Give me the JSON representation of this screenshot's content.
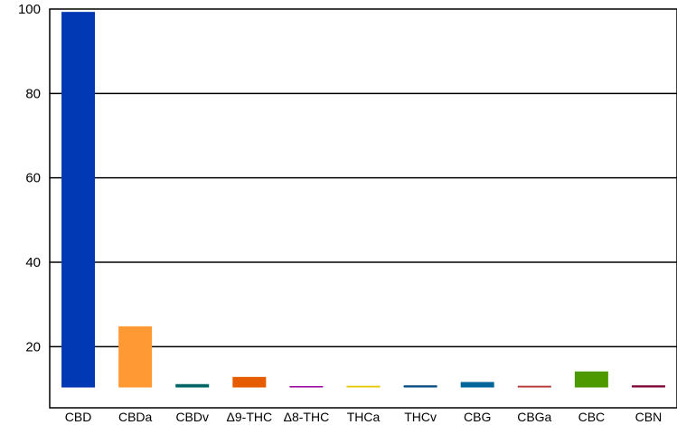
{
  "chart_data": {
    "type": "bar",
    "categories": [
      "CBD",
      "CBDa",
      "CBDv",
      "Δ9-THC",
      "Δ8-THC",
      "THCa",
      "THCv",
      "CBG",
      "CBGa",
      "CBC",
      "CBN"
    ],
    "values": [
      89,
      14.5,
      0.8,
      2.5,
      0.2,
      0.4,
      0.5,
      1.3,
      0.4,
      3.8,
      0.5
    ],
    "colors": [
      "#0039b3",
      "#ff9933",
      "#006666",
      "#e65c00",
      "#990099",
      "#e6c800",
      "#004c80",
      "#006699",
      "#b33333",
      "#4c9900",
      "#800033"
    ],
    "y_ticks": [
      20,
      40,
      60,
      80,
      100
    ],
    "ylim": [
      5.5,
      100
    ],
    "grid": true,
    "legend": "none"
  }
}
